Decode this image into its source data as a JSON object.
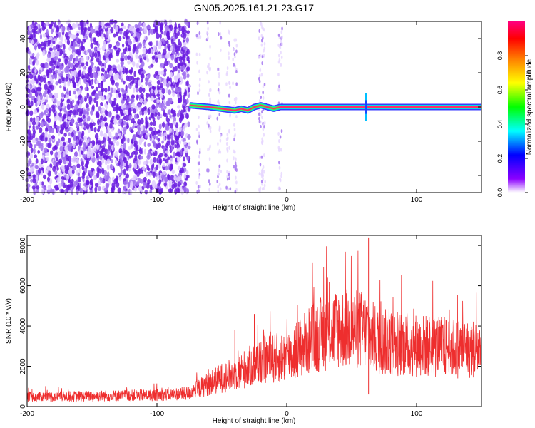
{
  "title": "GN05.2025.161.21.23.G17",
  "colors": {
    "snr_line": "#ee2e2e",
    "spec_low": "#e6d6ff",
    "spec_mid": "#6a1be0",
    "ridge": "#ff2a6a"
  },
  "chart_data": [
    {
      "type": "heatmap",
      "xlabel": "Height of straight line (km)",
      "ylabel": "Frequency (Hz)",
      "xlim": [
        -200,
        150
      ],
      "ylim": [
        -50,
        50
      ],
      "xticks": [
        -200,
        -100,
        0,
        100
      ],
      "yticks": [
        -40,
        -20,
        0,
        20,
        40
      ],
      "colorbar": {
        "label": "Normalized spectral amplitude",
        "range": [
          0,
          1
        ],
        "ticks": [
          "0.0",
          "0.2",
          "0.4",
          "0.6",
          "0.8"
        ],
        "colormap": [
          "#ffffff",
          "#8b00ff",
          "#0000ff",
          "#00ffff",
          "#00ff00",
          "#ffff00",
          "#ff7f00",
          "#ff0000",
          "#ff0080"
        ]
      },
      "ridge": {
        "x": [
          -75,
          -60,
          -50,
          -40,
          -35,
          -30,
          -25,
          -20,
          -15,
          -10,
          -5,
          0,
          20,
          40,
          60,
          150
        ],
        "y": [
          1,
          0,
          -1,
          -2,
          -1,
          -2,
          0,
          1,
          0,
          -1,
          0,
          0,
          0,
          0,
          0,
          0
        ]
      },
      "noise_region": [
        -200,
        -75
      ],
      "disturbance_x": 61
    },
    {
      "type": "line",
      "xlabel": "Height of straight line (km)",
      "ylabel": "SNR (10 * v/v)",
      "xlim": [
        -200,
        150
      ],
      "ylim": [
        0,
        8500
      ],
      "xticks": [
        -200,
        -100,
        0,
        100
      ],
      "yticks": [
        0,
        2000,
        4000,
        6000,
        8000
      ],
      "envelope": {
        "x": [
          -200,
          -150,
          -100,
          -75,
          -60,
          -50,
          -40,
          -20,
          0,
          20,
          40,
          60,
          70,
          100,
          150
        ],
        "y": [
          500,
          550,
          600,
          700,
          1200,
          1500,
          1700,
          2400,
          2600,
          3600,
          4100,
          4000,
          3400,
          3200,
          3000
        ]
      },
      "spikes": [
        {
          "x": 63,
          "y": 8400
        },
        {
          "x": 63,
          "y": 600
        },
        {
          "x": -25,
          "y": 4600
        },
        {
          "x": -40,
          "y": 3800
        }
      ]
    }
  ]
}
